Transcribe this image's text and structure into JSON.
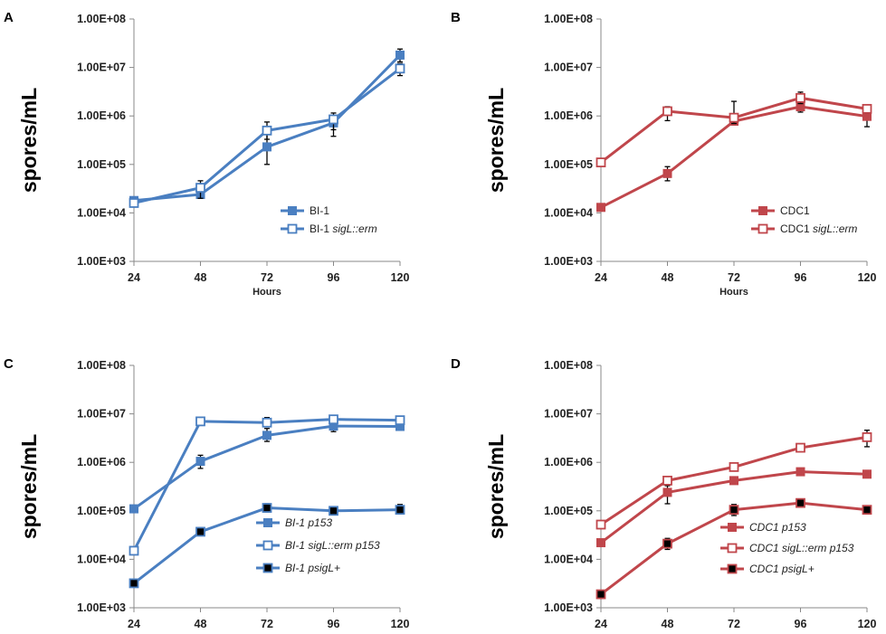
{
  "figure": {
    "yticks": [
      "1.00E+03",
      "1.00E+04",
      "1.00E+05",
      "1.00E+06",
      "1.00E+07",
      "1.00E+08"
    ],
    "colors": {
      "blue": "#4a7fc1",
      "red": "#c0464b",
      "black": "#000000"
    }
  },
  "chart_data": [
    {
      "panel": "A",
      "type": "line",
      "x": [
        24,
        48,
        72,
        96,
        120
      ],
      "xlabel": "Hours",
      "ylabel": "spores/mL",
      "yscale": "log",
      "ylim": [
        1000,
        100000000
      ],
      "color": "blue",
      "legend_position": "bottom-right",
      "series": [
        {
          "name": "BI-1",
          "italic": "",
          "marker": "filled-square",
          "values": [
            18000,
            24000,
            230000,
            720000,
            18000000
          ],
          "err_hi": [
            20000,
            27000,
            420000,
            900000,
            24000000
          ],
          "err_lo": [
            16000,
            21000,
            100000,
            520000,
            13000000
          ]
        },
        {
          "name": "BI-1 ",
          "italic": "sigL::erm",
          "marker": "open-square",
          "values": [
            16000,
            33000,
            500000,
            850000,
            9500000
          ],
          "err_hi": [
            18000,
            46000,
            750000,
            1150000,
            12000000
          ],
          "err_lo": [
            14000,
            20000,
            330000,
            380000,
            6800000
          ]
        }
      ]
    },
    {
      "panel": "B",
      "type": "line",
      "x": [
        24,
        48,
        72,
        96,
        120
      ],
      "xlabel": "Hours",
      "ylabel": "spores/mL",
      "yscale": "log",
      "ylim": [
        1000,
        100000000
      ],
      "color": "red",
      "legend_position": "bottom-right",
      "series": [
        {
          "name": "CDC1",
          "italic": "",
          "marker": "filled-square",
          "values": [
            13000,
            65000,
            780000,
            1550000,
            980000
          ],
          "err_hi": [
            14500,
            90000,
            900000,
            2000000,
            1300000
          ],
          "err_lo": [
            11500,
            46000,
            680000,
            1200000,
            600000
          ]
        },
        {
          "name": "CDC1 ",
          "italic": "sigL::erm",
          "marker": "open-square",
          "values": [
            110000,
            1250000,
            920000,
            2350000,
            1400000
          ],
          "err_hi": [
            125000,
            1550000,
            2000000,
            3100000,
            1650000
          ],
          "err_lo": [
            98000,
            800000,
            700000,
            1800000,
            1150000
          ]
        }
      ]
    },
    {
      "panel": "C",
      "type": "line",
      "x": [
        24,
        48,
        72,
        96,
        120
      ],
      "xlabel": "",
      "ylabel": "spores/mL",
      "yscale": "log",
      "ylim": [
        1000,
        100000000
      ],
      "color": "blue",
      "legend_position": "bottom-right",
      "series": [
        {
          "name": "BI-1 p153",
          "italic": "BI-1 p153",
          "marker": "filled-square",
          "values": [
            110000,
            1050000,
            3600000,
            5600000,
            5500000
          ],
          "err_hi": [
            120000,
            1400000,
            5000000,
            6400000,
            6000000
          ],
          "err_lo": [
            100000,
            750000,
            2700000,
            4300000,
            5000000
          ]
        },
        {
          "name": "BI-1 sigL::erm p153",
          "italic": "BI-1 sigL::erm p153",
          "marker": "open-square",
          "values": [
            15000,
            7000000,
            6600000,
            7700000,
            7400000
          ],
          "err_hi": [
            17000,
            7600000,
            8400000,
            8600000,
            8300000
          ],
          "err_lo": [
            13000,
            6400000,
            5600000,
            6900000,
            6800000
          ]
        },
        {
          "name": "BI-1 psigL+",
          "italic": "BI-1 psigL+",
          "marker": "black-square",
          "values": [
            3200,
            37000,
            115000,
            100000,
            105000
          ],
          "err_hi": [
            3700,
            42000,
            140000,
            112000,
            135000
          ],
          "err_lo": [
            2800,
            32000,
            95000,
            90000,
            88000
          ]
        }
      ]
    },
    {
      "panel": "D",
      "type": "line",
      "x": [
        24,
        48,
        72,
        96,
        120
      ],
      "xlabel": "",
      "ylabel": "spores/mL",
      "yscale": "log",
      "ylim": [
        1000,
        100000000
      ],
      "color": "red",
      "legend_position": "bottom-right",
      "series": [
        {
          "name": "CDC1 p153",
          "italic": "CDC1 p153",
          "marker": "filled-square",
          "values": [
            22000,
            240000,
            420000,
            640000,
            570000
          ],
          "err_hi": [
            25000,
            330000,
            470000,
            720000,
            620000
          ],
          "err_lo": [
            19000,
            140000,
            380000,
            580000,
            520000
          ]
        },
        {
          "name": "CDC1 sigL::erm p153",
          "italic": "CDC1 sigL::erm p153",
          "marker": "open-square",
          "values": [
            52000,
            420000,
            800000,
            2000000,
            3300000
          ],
          "err_hi": [
            58000,
            460000,
            880000,
            2200000,
            4600000
          ],
          "err_lo": [
            46000,
            380000,
            720000,
            1800000,
            2100000
          ]
        },
        {
          "name": "CDC1 psigL+",
          "italic": "CDC1 psigL+",
          "marker": "black-square",
          "values": [
            1900,
            21000,
            105000,
            145000,
            105000
          ],
          "err_hi": [
            2100,
            27000,
            135000,
            170000,
            118000
          ],
          "err_lo": [
            1700,
            16000,
            80000,
            125000,
            95000
          ]
        }
      ]
    }
  ]
}
